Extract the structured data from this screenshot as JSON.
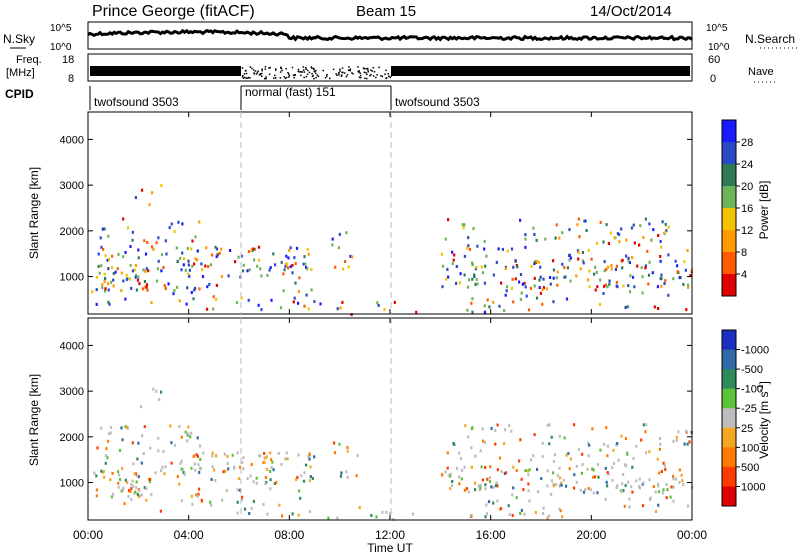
{
  "header": {
    "station": "Prince George (fitACF)",
    "beam": "Beam 15",
    "date": "14/Oct/2014"
  },
  "panels": {
    "nsky": {
      "left_label": "N.Sky",
      "right_label": "N.Search",
      "left_ticks": [
        "10^5",
        "10^0"
      ],
      "right_ticks": [
        "10^5",
        "10^0"
      ]
    },
    "freq": {
      "left_label_top": "Freq.",
      "left_label_bottom": "[MHz]",
      "right_label": "Nave",
      "left_ticks": [
        "18",
        "8"
      ],
      "right_ticks": [
        "60",
        "0"
      ]
    },
    "cpid": {
      "label": "CPID",
      "segments": [
        "twofsound 3503",
        "normal (fast) 151",
        "twofsound 3503"
      ]
    }
  },
  "chart_data": [
    {
      "type": "heatmap",
      "name": "power",
      "ylabel": "Slant Range [km]",
      "ylim": [
        180,
        4600
      ],
      "yticks": [
        "1000",
        "2000",
        "3000",
        "4000"
      ],
      "colorbar": {
        "label": "Power [dB]",
        "ticks": [
          "4",
          "8",
          "12",
          "16",
          "20",
          "24",
          "28"
        ],
        "colors": [
          "#1a1aff",
          "#2a48c8",
          "#2f7a55",
          "#6cb35a",
          "#f2c400",
          "#ff9a00",
          "#ff5a00",
          "#e00000"
        ]
      }
    },
    {
      "type": "heatmap",
      "name": "velocity",
      "ylabel": "Slant Range [km]",
      "ylim": [
        180,
        4600
      ],
      "yticks": [
        "1000",
        "2000",
        "3000",
        "4000"
      ],
      "colorbar": {
        "label": "Velocity [m s",
        "label_sup": "-1",
        "label_end": "]",
        "ticks": [
          "1000",
          "500",
          "100",
          "25",
          "-25",
          "-100",
          "-500",
          "-1000"
        ],
        "colors": [
          "#1a2fbf",
          "#2f6aa8",
          "#2e8a5a",
          "#5cc23a",
          "#bdbdbd",
          "#f5a623",
          "#ff7a00",
          "#ff3c00",
          "#e00000"
        ]
      }
    }
  ],
  "x_axis": {
    "label": "Time UT",
    "ticks": [
      "00:00",
      "04:00",
      "08:00",
      "12:00",
      "16:00",
      "20:00",
      "00:00"
    ]
  }
}
